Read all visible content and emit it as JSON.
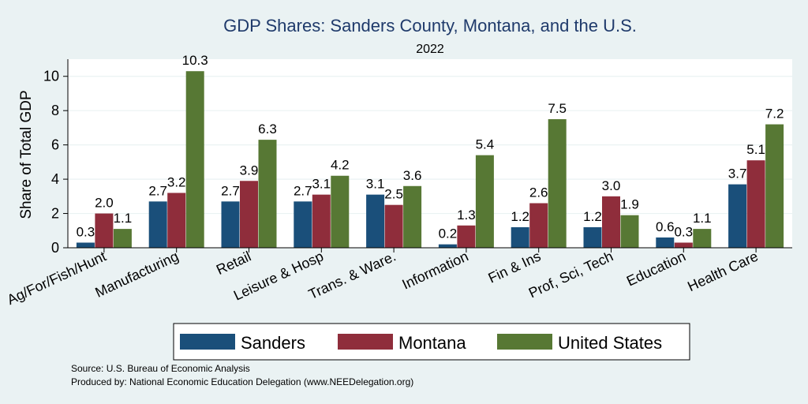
{
  "chart_data": {
    "type": "bar",
    "title": "GDP Shares: Sanders County, Montana, and the U.S.",
    "subtitle": "2022",
    "ylabel": "Share of Total GDP",
    "xlabel": "",
    "ylim": [
      0,
      11
    ],
    "yticks": [
      0,
      2,
      4,
      6,
      8,
      10
    ],
    "grid": true,
    "legend_position": "bottom",
    "categories": [
      "Ag/For/Fish/Hunt",
      "Manufacturing",
      "Retail",
      "Leisure & Hosp",
      "Trans. & Ware.",
      "Information",
      "Fin & Ins",
      "Prof, Sci, Tech",
      "Education",
      "Health Care"
    ],
    "series": [
      {
        "name": "Sanders",
        "color": "#1a4f7a",
        "values": [
          0.3,
          2.7,
          2.7,
          2.7,
          3.1,
          0.2,
          1.2,
          1.2,
          0.6,
          3.7
        ]
      },
      {
        "name": "Montana",
        "color": "#8f2d3b",
        "values": [
          2.0,
          3.2,
          3.9,
          3.1,
          2.5,
          1.3,
          2.6,
          3.0,
          0.3,
          5.1
        ]
      },
      {
        "name": "United States",
        "color": "#577834",
        "values": [
          1.1,
          10.3,
          6.3,
          4.2,
          3.6,
          5.4,
          7.5,
          1.9,
          1.1,
          7.2
        ]
      }
    ]
  },
  "notes": {
    "source": "Source: U.S. Bureau of Economic Analysis",
    "produced": "Produced by: National Economic Education Delegation (www.NEEDelegation.org)"
  }
}
